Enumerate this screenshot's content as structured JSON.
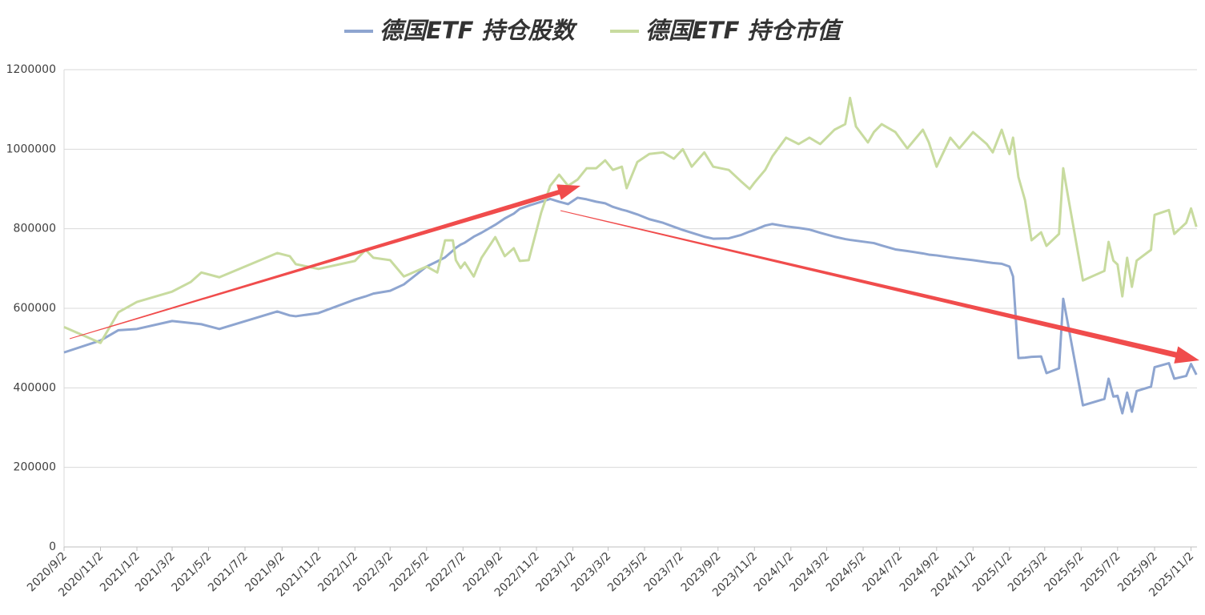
{
  "chart_data": {
    "type": "line",
    "x": [
      "2020/9/2",
      "2020/11/2",
      "2020/12/2",
      "2021/1/2",
      "2021/3/2",
      "2021/4/2",
      "2021/4/20",
      "2021/5/20",
      "2021/8/25",
      "2021/9/15",
      "2021/9/25",
      "2021/11/2",
      "2022/1/2",
      "2022/1/20",
      "2022/2/2",
      "2022/3/2",
      "2022/3/25",
      "2022/5/2",
      "2022/5/20",
      "2022/6/2",
      "2022/6/15",
      "2022/6/20",
      "2022/6/28",
      "2022/7/5",
      "2022/7/20",
      "2022/8/2",
      "2022/8/25",
      "2022/9/10",
      "2022/9/25",
      "2022/10/5",
      "2022/10/20",
      "2022/11/10",
      "2022/11/25",
      "2022/12/10",
      "2022/12/25",
      "2023/1/10",
      "2023/1/25",
      "2023/2/10",
      "2023/2/25",
      "2023/3/10",
      "2023/3/25",
      "2023/4/2",
      "2023/4/20",
      "2023/5/10",
      "2023/6/2",
      "2023/6/20",
      "2023/7/5",
      "2023/7/20",
      "2023/8/10",
      "2023/8/25",
      "2023/9/20",
      "2023/10/10",
      "2023/10/25",
      "2023/11/2",
      "2023/11/20",
      "2023/12/2",
      "2023/12/25",
      "2024/1/15",
      "2024/2/2",
      "2024/2/20",
      "2024/3/15",
      "2024/4/2",
      "2024/4/10",
      "2024/4/20",
      "2024/5/10",
      "2024/5/20",
      "2024/6/2",
      "2024/6/25",
      "2024/7/15",
      "2024/8/10",
      "2024/8/20",
      "2024/9/2",
      "2024/9/25",
      "2024/10/10",
      "2024/11/2",
      "2024/11/25",
      "2024/12/5",
      "2024/12/20",
      "2025/1/2",
      "2025/1/8",
      "2025/1/17",
      "2025/1/28",
      "2025/2/8",
      "2025/2/24",
      "2025/3/5",
      "2025/3/26",
      "2025/4/2",
      "2025/4/10",
      "2025/5/5",
      "2025/6/10",
      "2025/6/17",
      "2025/6/25",
      "2025/7/2",
      "2025/7/10",
      "2025/7/18",
      "2025/7/26",
      "2025/8/3",
      "2025/8/27",
      "2025/9/2",
      "2025/9/26",
      "2025/10/5",
      "2025/10/25",
      "2025/11/2",
      "2025/11/11"
    ],
    "series": [
      {
        "name": "德国ETF 持仓股数",
        "color": "#8ea5d0",
        "values": [
          489000,
          519000,
          545000,
          548000,
          568000,
          563000,
          560000,
          548000,
          592000,
          582000,
          580000,
          588000,
          622000,
          630000,
          637000,
          644000,
          660000,
          705000,
          718000,
          728000,
          745000,
          752000,
          760000,
          765000,
          780000,
          790000,
          810000,
          826000,
          838000,
          850000,
          858000,
          868000,
          875000,
          868000,
          862000,
          878000,
          874000,
          868000,
          864000,
          855000,
          848000,
          845000,
          836000,
          824000,
          815000,
          805000,
          797000,
          790000,
          780000,
          775000,
          776000,
          784000,
          793000,
          797000,
          808000,
          812000,
          806000,
          802000,
          798000,
          790000,
          780000,
          774000,
          772000,
          770000,
          766000,
          764000,
          758000,
          748000,
          744000,
          738000,
          735000,
          733000,
          728000,
          725000,
          721000,
          716000,
          714000,
          712000,
          705000,
          680000,
          475000,
          476000,
          478000,
          479000,
          437000,
          449000,
          624000,
          560000,
          356000,
          372000,
          423000,
          378000,
          380000,
          336000,
          388000,
          340000,
          392000,
          403000,
          452000,
          462000,
          423000,
          430000,
          460000,
          433000
        ]
      },
      {
        "name": "德国ETF 持仓市值",
        "color": "#c8db9f",
        "values": [
          553000,
          513000,
          590000,
          616000,
          642000,
          666000,
          690000,
          678000,
          739000,
          731000,
          711000,
          699000,
          719000,
          747000,
          727000,
          721000,
          680000,
          705000,
          690000,
          771000,
          771000,
          721000,
          701000,
          715000,
          680000,
          727000,
          779000,
          731000,
          751000,
          719000,
          721000,
          841000,
          908000,
          936000,
          908000,
          924000,
          952000,
          952000,
          972000,
          948000,
          956000,
          902000,
          968000,
          988000,
          992000,
          976000,
          1000000,
          956000,
          992000,
          956000,
          948000,
          920000,
          900000,
          916000,
          948000,
          982000,
          1029000,
          1013000,
          1029000,
          1013000,
          1049000,
          1063000,
          1129000,
          1057000,
          1017000,
          1043000,
          1063000,
          1043000,
          1002000,
          1049000,
          1017000,
          956000,
          1029000,
          1002000,
          1043000,
          1013000,
          992000,
          1049000,
          988000,
          1029000,
          930000,
          872000,
          771000,
          791000,
          757000,
          787000,
          952000,
          882000,
          670000,
          694000,
          767000,
          720000,
          710000,
          630000,
          727000,
          654000,
          720000,
          747000,
          835000,
          847000,
          787000,
          815000,
          851000,
          805000
        ]
      }
    ],
    "xlim": [
      "2020/9/2",
      "2025/11/12"
    ],
    "xticks": [
      "2020/9/2",
      "2020/11/2",
      "2021/1/2",
      "2021/3/2",
      "2021/5/2",
      "2021/7/2",
      "2021/9/2",
      "2021/11/2",
      "2022/1/2",
      "2022/3/2",
      "2022/5/2",
      "2022/7/2",
      "2022/9/2",
      "2022/11/2",
      "2023/1/2",
      "2023/3/2",
      "2023/5/2",
      "2023/7/2",
      "2023/9/2",
      "2023/11/2",
      "2024/1/2",
      "2024/3/2",
      "2024/5/2",
      "2024/7/2",
      "2024/9/2",
      "2024/11/2",
      "2025/1/2",
      "2025/3/2",
      "2025/5/2",
      "2025/7/2",
      "2025/9/2",
      "2025/11/2"
    ],
    "ylim": [
      0,
      1200000
    ],
    "yticks": [
      0,
      200000,
      400000,
      600000,
      800000,
      1000000,
      1200000
    ],
    "grid": true
  }
}
